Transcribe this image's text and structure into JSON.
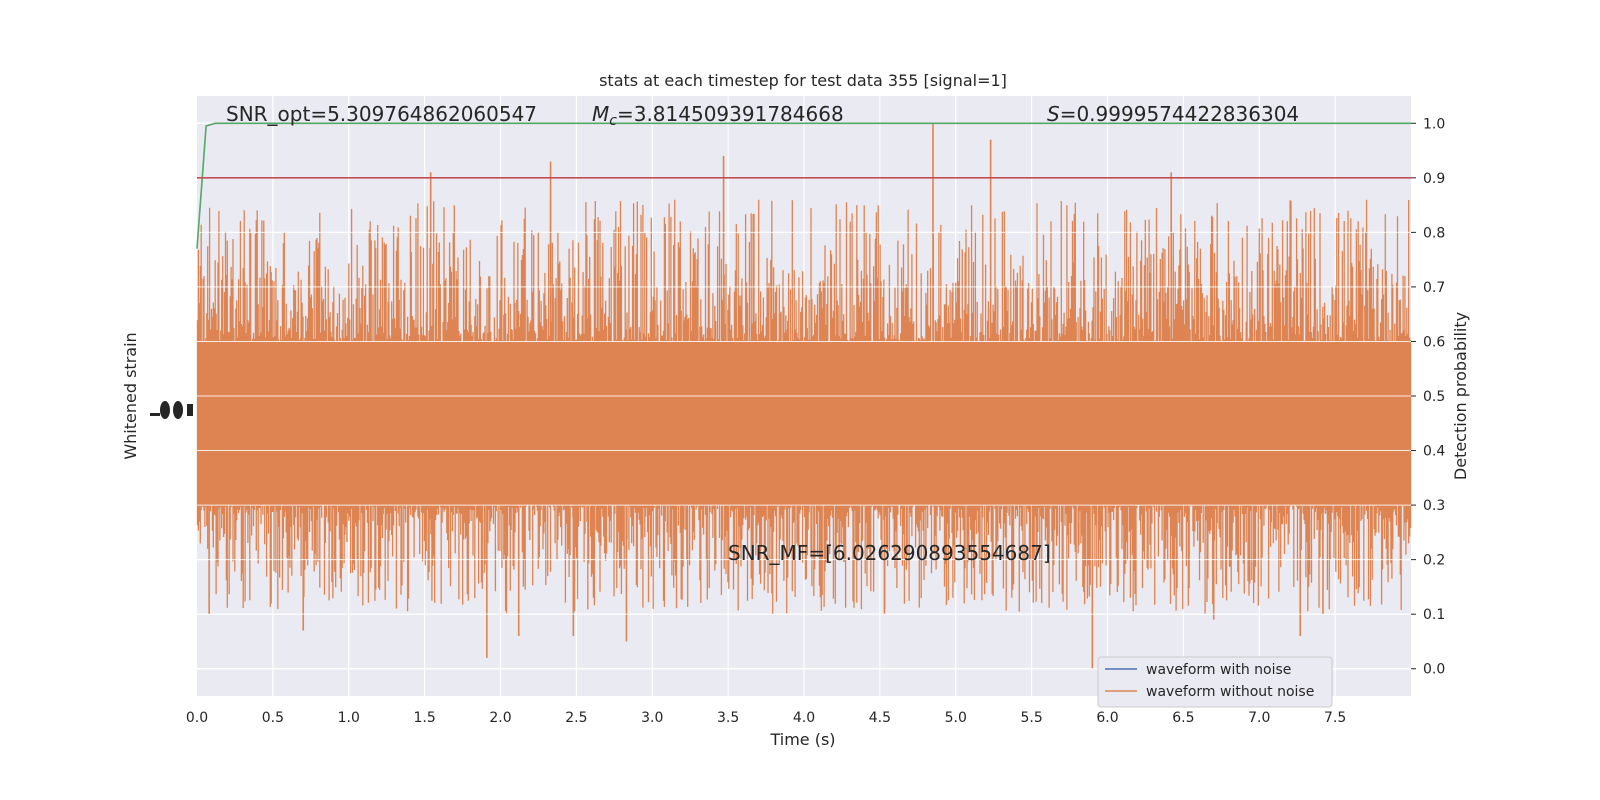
{
  "chart_data": {
    "type": "line",
    "title": "stats at each timestep for test data 355 [signal=1]",
    "xlabel": "Time (s)",
    "ylabel_left": "Whitened strain",
    "ylabel_right": "Detection probability",
    "xlim": [
      0.0,
      8.0
    ],
    "ylim_right": [
      -0.05,
      1.05
    ],
    "x_ticks": [
      "0.0",
      "0.5",
      "1.0",
      "1.5",
      "2.0",
      "2.5",
      "3.0",
      "3.5",
      "4.0",
      "4.5",
      "5.0",
      "5.5",
      "6.0",
      "6.5",
      "7.0",
      "7.5"
    ],
    "y_right_ticks": [
      "0.0",
      "0.1",
      "0.2",
      "0.3",
      "0.4",
      "0.5",
      "0.6",
      "0.7",
      "0.8",
      "0.9",
      "1.0"
    ],
    "grid": true,
    "legend_placement": "lower-right",
    "annotations": {
      "snr_opt": "SNR_opt=5.309764862060547",
      "mc_symbol": "M",
      "mc_sub": "c",
      "mc_value": "=3.814509391784668",
      "s_symbol": "S",
      "s_value": "=0.9999574422836304",
      "snr_mf": "SNR_MF=[6.026290893554687]"
    },
    "series": [
      {
        "name": "waveform with noise",
        "color": "#4c72b0",
        "style": "dense noise band"
      },
      {
        "name": "waveform without noise",
        "color": "#dd8452",
        "style": "dense noise band, centered ~0.45, typical range 0.3–0.6, spikes 0.02–1.0"
      },
      {
        "color": "#55a868",
        "x": [
          0.0,
          0.06,
          0.12,
          8.0
        ],
        "values": [
          0.77,
          0.995,
          1.0,
          1.0
        ]
      },
      {
        "color": "#c44e52",
        "x": [
          0.0,
          8.0
        ],
        "values": [
          0.9,
          0.9
        ]
      }
    ],
    "spikes": [
      {
        "x": 1.54,
        "y": 0.91
      },
      {
        "x": 2.33,
        "y": 0.93
      },
      {
        "x": 3.47,
        "y": 0.94
      },
      {
        "x": 4.85,
        "y": 1.0
      },
      {
        "x": 5.23,
        "y": 0.97
      },
      {
        "x": 6.42,
        "y": 0.91
      },
      {
        "x": 1.91,
        "y": 0.02
      },
      {
        "x": 2.12,
        "y": 0.06
      },
      {
        "x": 2.48,
        "y": 0.06
      },
      {
        "x": 2.83,
        "y": 0.05
      },
      {
        "x": 0.7,
        "y": 0.07
      },
      {
        "x": 5.9,
        "y": 0.0
      },
      {
        "x": 7.27,
        "y": 0.06
      },
      {
        "x": 0.08,
        "y": 0.1
      },
      {
        "x": 4.53,
        "y": 0.1
      },
      {
        "x": 6.7,
        "y": 0.09
      },
      {
        "x": 7.42,
        "y": 0.1
      }
    ]
  }
}
